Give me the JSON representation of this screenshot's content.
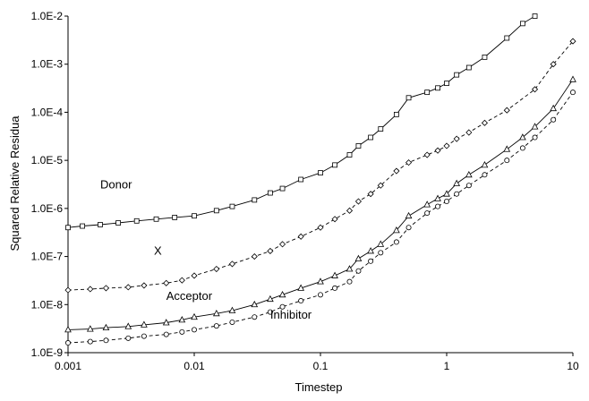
{
  "chart_data": {
    "type": "line",
    "title": "",
    "xlabel": "Timestep",
    "ylabel": "Squared Relative Residua",
    "xscale": "log",
    "yscale": "log",
    "xlim": [
      0.001,
      10
    ],
    "ylim": [
      1e-09,
      0.01
    ],
    "x_ticks": [
      0.001,
      0.01,
      0.1,
      1,
      10
    ],
    "x_tick_labels": [
      "0.001",
      "0.01",
      "0.1",
      "1",
      "10"
    ],
    "y_ticks": [
      1e-09,
      1e-08,
      1e-07,
      1e-06,
      1e-05,
      0.0001,
      0.001,
      0.01
    ],
    "y_tick_labels": [
      "1.0E-9",
      "1.0E-8",
      "1.0E-7",
      "1.0E-6",
      "1.0E-5",
      "1.0E-4",
      "1.0E-3",
      "1.0E-2"
    ],
    "grid": false,
    "legend": "inline labels",
    "series": [
      {
        "name": "Donor",
        "marker": "square",
        "line": "solid",
        "x": [
          0.001,
          0.0013,
          0.0018,
          0.0025,
          0.0035,
          0.005,
          0.007,
          0.01,
          0.015,
          0.02,
          0.03,
          0.04,
          0.05,
          0.07,
          0.1,
          0.13,
          0.17,
          0.2,
          0.25,
          0.3,
          0.4,
          0.5,
          0.7,
          0.85,
          1,
          1.2,
          1.5,
          2,
          3,
          4,
          5
        ],
        "y": [
          4e-07,
          4.3e-07,
          4.6e-07,
          5e-07,
          5.5e-07,
          6e-07,
          6.5e-07,
          7e-07,
          9e-07,
          1.1e-06,
          1.5e-06,
          2.1e-06,
          2.6e-06,
          4e-06,
          5.5e-06,
          8e-06,
          1.3e-05,
          2e-05,
          3e-05,
          4.5e-05,
          9e-05,
          0.0002,
          0.00026,
          0.00032,
          0.0004,
          0.0006,
          0.00085,
          0.0014,
          0.0035,
          0.007,
          0.01
        ]
      },
      {
        "name": "X",
        "marker": "diamond",
        "line": "dashed",
        "x": [
          0.001,
          0.0015,
          0.002,
          0.003,
          0.004,
          0.006,
          0.008,
          0.01,
          0.015,
          0.02,
          0.03,
          0.04,
          0.05,
          0.07,
          0.1,
          0.13,
          0.17,
          0.2,
          0.25,
          0.3,
          0.4,
          0.5,
          0.7,
          0.85,
          1,
          1.2,
          1.5,
          2,
          3,
          5,
          7,
          10
        ],
        "y": [
          2e-08,
          2.1e-08,
          2.2e-08,
          2.3e-08,
          2.5e-08,
          2.8e-08,
          3.2e-08,
          4e-08,
          5.5e-08,
          7e-08,
          1e-07,
          1.3e-07,
          1.8e-07,
          2.6e-07,
          4e-07,
          6e-07,
          9e-07,
          1.4e-06,
          2e-06,
          3e-06,
          6e-06,
          9e-06,
          1.3e-05,
          1.6e-05,
          2e-05,
          2.8e-05,
          3.8e-05,
          6e-05,
          0.00011,
          0.0003,
          0.001,
          0.003
        ]
      },
      {
        "name": "Acceptor",
        "marker": "triangle",
        "line": "solid",
        "x": [
          0.001,
          0.0015,
          0.002,
          0.003,
          0.004,
          0.006,
          0.008,
          0.01,
          0.015,
          0.02,
          0.03,
          0.04,
          0.05,
          0.07,
          0.1,
          0.13,
          0.17,
          0.2,
          0.25,
          0.3,
          0.4,
          0.5,
          0.7,
          0.85,
          1,
          1.2,
          1.5,
          2,
          3,
          4,
          5,
          7,
          10
        ],
        "y": [
          3e-09,
          3.1e-09,
          3.3e-09,
          3.5e-09,
          3.8e-09,
          4.2e-09,
          4.8e-09,
          5.5e-09,
          6.5e-09,
          7.5e-09,
          1e-08,
          1.3e-08,
          1.6e-08,
          2.2e-08,
          3e-08,
          4e-08,
          5.5e-08,
          9e-08,
          1.3e-07,
          1.8e-07,
          3.5e-07,
          7e-07,
          1.2e-06,
          1.6e-06,
          2e-06,
          3.3e-06,
          5e-06,
          8e-06,
          1.7e-05,
          3e-05,
          5e-05,
          0.00012,
          0.00048
        ]
      },
      {
        "name": "Inhibitor",
        "marker": "circle",
        "line": "dashed",
        "x": [
          0.001,
          0.0015,
          0.002,
          0.003,
          0.004,
          0.006,
          0.008,
          0.01,
          0.015,
          0.02,
          0.03,
          0.04,
          0.05,
          0.07,
          0.1,
          0.13,
          0.17,
          0.2,
          0.25,
          0.3,
          0.4,
          0.5,
          0.7,
          0.85,
          1,
          1.2,
          1.5,
          2,
          3,
          4,
          5,
          7,
          10
        ],
        "y": [
          1.6e-09,
          1.7e-09,
          1.8e-09,
          2e-09,
          2.2e-09,
          2.4e-09,
          2.7e-09,
          3e-09,
          3.6e-09,
          4.3e-09,
          5.5e-09,
          7e-09,
          9e-09,
          1.2e-08,
          1.6e-08,
          2.2e-08,
          3e-08,
          5e-08,
          8e-08,
          1.2e-07,
          2e-07,
          4e-07,
          8e-07,
          1.1e-06,
          1.4e-06,
          2e-06,
          3e-06,
          5e-06,
          1e-05,
          1.8e-05,
          3e-05,
          7e-05,
          0.00026
        ]
      }
    ]
  }
}
